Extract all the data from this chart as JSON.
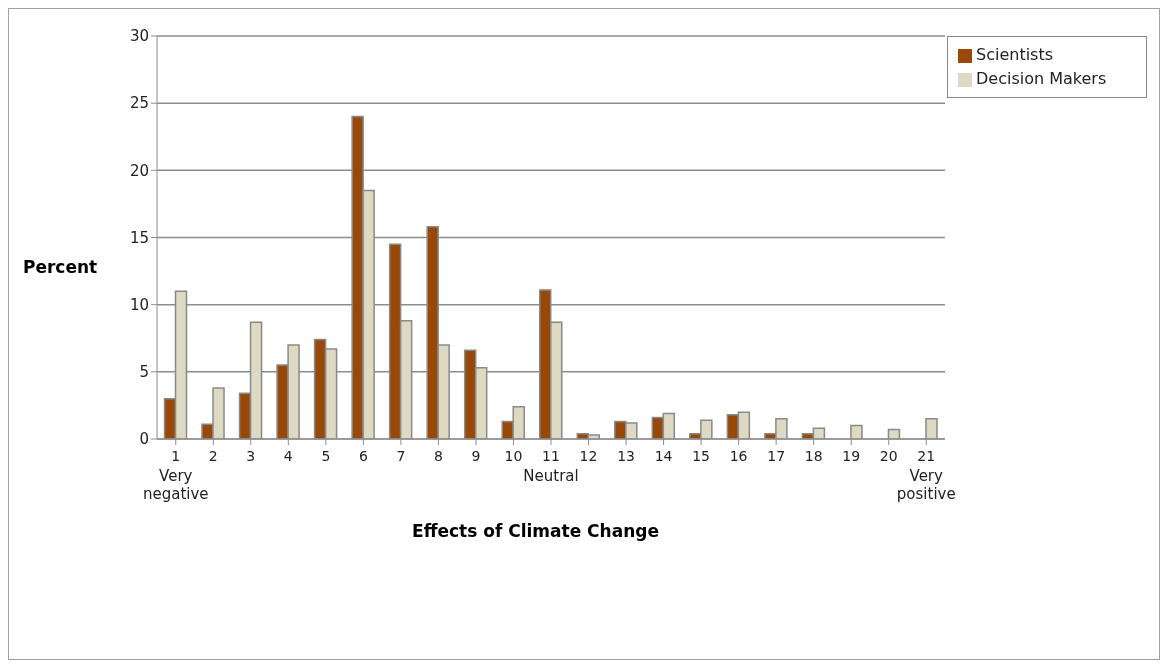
{
  "chart_data": {
    "type": "bar",
    "xlabel": "Effects of Climate Change",
    "ylabel": "Percent",
    "categories": [
      "1",
      "2",
      "3",
      "4",
      "5",
      "6",
      "7",
      "8",
      "9",
      "10",
      "11",
      "12",
      "13",
      "14",
      "15",
      "16",
      "17",
      "18",
      "19",
      "20",
      "21"
    ],
    "series": [
      {
        "name": "Scientists",
        "color": "#984807",
        "values": [
          3.0,
          1.1,
          3.4,
          5.5,
          7.4,
          24.0,
          14.5,
          15.8,
          6.6,
          1.3,
          11.1,
          0.4,
          1.3,
          1.6,
          0.4,
          1.8,
          0.4,
          0.4,
          0,
          0,
          0
        ]
      },
      {
        "name": "Decision Makers",
        "color": "#ddd9c3",
        "values": [
          11.0,
          3.8,
          8.7,
          7.0,
          6.7,
          18.5,
          8.8,
          7.0,
          5.3,
          2.4,
          8.7,
          0.3,
          1.2,
          1.9,
          1.4,
          2.0,
          1.5,
          0.8,
          1.0,
          0.7,
          1.5
        ]
      }
    ],
    "ylim": [
      0,
      30
    ],
    "yticks": [
      0,
      5,
      10,
      15,
      20,
      25,
      30
    ],
    "grid": "y",
    "legend": "top right",
    "annotations": [
      "Very negative",
      "Neutral",
      "Very positive"
    ]
  }
}
